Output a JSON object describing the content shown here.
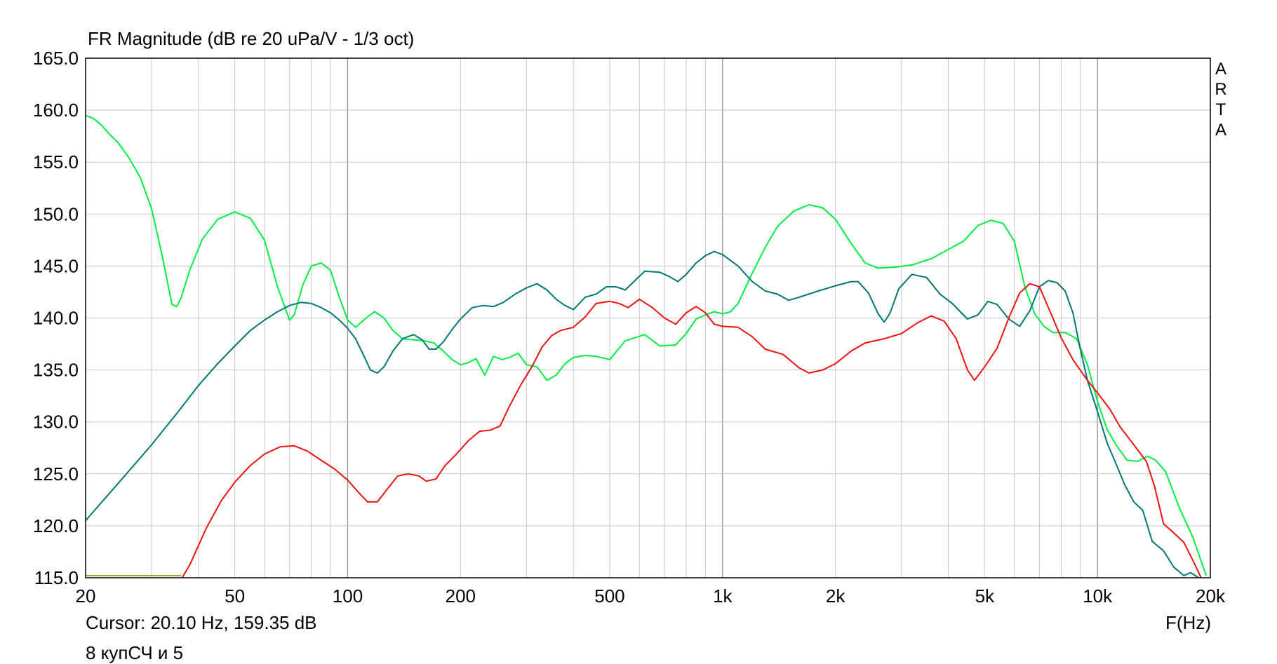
{
  "chart_data": {
    "type": "line",
    "title": "FR Magnitude (dB re 20 uPa/V - 1/3 oct)",
    "xlabel": "F(Hz)",
    "ylabel": "",
    "xscale": "log",
    "xlim": [
      20,
      20000
    ],
    "ylim": [
      115,
      165
    ],
    "grid": true,
    "x_ticks": [
      20,
      50,
      100,
      200,
      500,
      1000,
      2000,
      5000,
      10000,
      20000
    ],
    "x_tick_labels": [
      "20",
      "50",
      "100",
      "200",
      "500",
      "1k",
      "2k",
      "5k",
      "10k",
      "20k"
    ],
    "y_ticks": [
      115,
      120,
      125,
      130,
      135,
      140,
      145,
      150,
      155,
      160,
      165
    ],
    "y_tick_labels": [
      "115.0",
      "120.0",
      "125.0",
      "130.0",
      "135.0",
      "140.0",
      "145.0",
      "150.0",
      "155.0",
      "160.0",
      "165.0"
    ],
    "series": [
      {
        "color": "#00ee44",
        "points": [
          [
            20,
            159.5
          ],
          [
            21,
            159.2
          ],
          [
            22,
            158.6
          ],
          [
            23,
            157.8
          ],
          [
            24.5,
            156.8
          ],
          [
            26,
            155.5
          ],
          [
            28,
            153.5
          ],
          [
            30,
            150.5
          ],
          [
            32,
            146.0
          ],
          [
            34,
            141.3
          ],
          [
            35,
            141.1
          ],
          [
            36,
            142.0
          ],
          [
            38,
            144.7
          ],
          [
            41,
            147.6
          ],
          [
            45,
            149.5
          ],
          [
            50,
            150.2
          ],
          [
            55,
            149.6
          ],
          [
            60,
            147.5
          ],
          [
            65,
            143.0
          ],
          [
            70,
            139.8
          ],
          [
            72,
            140.3
          ],
          [
            76,
            143.2
          ],
          [
            80,
            145.0
          ],
          [
            85,
            145.3
          ],
          [
            90,
            144.6
          ],
          [
            95,
            142.0
          ],
          [
            100,
            139.8
          ],
          [
            105,
            139.1
          ],
          [
            112,
            140.0
          ],
          [
            118,
            140.6
          ],
          [
            125,
            140.0
          ],
          [
            132,
            138.8
          ],
          [
            140,
            138.0
          ],
          [
            150,
            137.9
          ],
          [
            160,
            137.8
          ],
          [
            170,
            137.6
          ],
          [
            180,
            136.8
          ],
          [
            190,
            136.0
          ],
          [
            200,
            135.5
          ],
          [
            210,
            135.7
          ],
          [
            220,
            136.1
          ],
          [
            232,
            134.5
          ],
          [
            245,
            136.3
          ],
          [
            258,
            136.0
          ],
          [
            270,
            136.2
          ],
          [
            285,
            136.6
          ],
          [
            300,
            135.5
          ],
          [
            320,
            135.3
          ],
          [
            340,
            134.0
          ],
          [
            360,
            134.5
          ],
          [
            380,
            135.6
          ],
          [
            400,
            136.2
          ],
          [
            430,
            136.4
          ],
          [
            460,
            136.3
          ],
          [
            500,
            136.0
          ],
          [
            550,
            137.8
          ],
          [
            620,
            138.4
          ],
          [
            680,
            137.3
          ],
          [
            750,
            137.4
          ],
          [
            800,
            138.5
          ],
          [
            850,
            139.9
          ],
          [
            900,
            140.3
          ],
          [
            950,
            140.6
          ],
          [
            1000,
            140.4
          ],
          [
            1050,
            140.6
          ],
          [
            1100,
            141.4
          ],
          [
            1200,
            144.3
          ],
          [
            1300,
            146.8
          ],
          [
            1400,
            148.8
          ],
          [
            1550,
            150.3
          ],
          [
            1700,
            150.9
          ],
          [
            1850,
            150.6
          ],
          [
            2000,
            149.5
          ],
          [
            2200,
            147.2
          ],
          [
            2400,
            145.3
          ],
          [
            2600,
            144.8
          ],
          [
            2900,
            144.9
          ],
          [
            3200,
            145.1
          ],
          [
            3600,
            145.7
          ],
          [
            4000,
            146.6
          ],
          [
            4400,
            147.4
          ],
          [
            4800,
            148.9
          ],
          [
            5200,
            149.4
          ],
          [
            5600,
            149.1
          ],
          [
            6000,
            147.4
          ],
          [
            6400,
            143.0
          ],
          [
            6800,
            140.4
          ],
          [
            7200,
            139.2
          ],
          [
            7600,
            138.6
          ],
          [
            8200,
            138.6
          ],
          [
            8800,
            138.0
          ],
          [
            9400,
            135.5
          ],
          [
            10000,
            132.0
          ],
          [
            10600,
            129.3
          ],
          [
            11200,
            127.8
          ],
          [
            12000,
            126.3
          ],
          [
            12800,
            126.2
          ],
          [
            13600,
            126.7
          ],
          [
            14300,
            126.3
          ],
          [
            15200,
            125.2
          ],
          [
            16500,
            121.8
          ],
          [
            18000,
            118.8
          ],
          [
            19500,
            115.2
          ]
        ]
      },
      {
        "color": "#007777",
        "points": [
          [
            20,
            120.5
          ],
          [
            25,
            124.5
          ],
          [
            30,
            127.8
          ],
          [
            35,
            130.8
          ],
          [
            40,
            133.5
          ],
          [
            45,
            135.6
          ],
          [
            50,
            137.3
          ],
          [
            55,
            138.8
          ],
          [
            60,
            139.8
          ],
          [
            65,
            140.6
          ],
          [
            70,
            141.2
          ],
          [
            75,
            141.5
          ],
          [
            80,
            141.4
          ],
          [
            85,
            141.0
          ],
          [
            90,
            140.5
          ],
          [
            95,
            139.8
          ],
          [
            100,
            139.0
          ],
          [
            105,
            138.0
          ],
          [
            110,
            136.5
          ],
          [
            115,
            135.0
          ],
          [
            120,
            134.7
          ],
          [
            125,
            135.3
          ],
          [
            132,
            136.8
          ],
          [
            140,
            138.0
          ],
          [
            150,
            138.4
          ],
          [
            158,
            137.9
          ],
          [
            165,
            137.0
          ],
          [
            172,
            137.0
          ],
          [
            180,
            137.7
          ],
          [
            190,
            138.9
          ],
          [
            200,
            139.9
          ],
          [
            215,
            141.0
          ],
          [
            230,
            141.2
          ],
          [
            245,
            141.1
          ],
          [
            260,
            141.5
          ],
          [
            280,
            142.3
          ],
          [
            300,
            142.9
          ],
          [
            320,
            143.3
          ],
          [
            340,
            142.7
          ],
          [
            360,
            141.8
          ],
          [
            380,
            141.2
          ],
          [
            400,
            140.8
          ],
          [
            430,
            142.0
          ],
          [
            460,
            142.3
          ],
          [
            490,
            143.0
          ],
          [
            520,
            143.0
          ],
          [
            550,
            142.7
          ],
          [
            580,
            143.5
          ],
          [
            620,
            144.5
          ],
          [
            680,
            144.4
          ],
          [
            720,
            144.0
          ],
          [
            760,
            143.5
          ],
          [
            800,
            144.2
          ],
          [
            850,
            145.3
          ],
          [
            900,
            146.0
          ],
          [
            950,
            146.4
          ],
          [
            1000,
            146.1
          ],
          [
            1100,
            145.0
          ],
          [
            1200,
            143.5
          ],
          [
            1300,
            142.6
          ],
          [
            1400,
            142.3
          ],
          [
            1500,
            141.7
          ],
          [
            1600,
            142.0
          ],
          [
            1800,
            142.6
          ],
          [
            2000,
            143.1
          ],
          [
            2200,
            143.5
          ],
          [
            2300,
            143.5
          ],
          [
            2450,
            142.4
          ],
          [
            2600,
            140.4
          ],
          [
            2700,
            139.6
          ],
          [
            2800,
            140.5
          ],
          [
            2950,
            142.8
          ],
          [
            3200,
            144.2
          ],
          [
            3500,
            143.9
          ],
          [
            3800,
            142.3
          ],
          [
            4100,
            141.4
          ],
          [
            4500,
            139.9
          ],
          [
            4800,
            140.3
          ],
          [
            5100,
            141.6
          ],
          [
            5400,
            141.3
          ],
          [
            5800,
            139.9
          ],
          [
            6200,
            139.2
          ],
          [
            6600,
            140.7
          ],
          [
            7000,
            143.0
          ],
          [
            7400,
            143.6
          ],
          [
            7800,
            143.4
          ],
          [
            8200,
            142.6
          ],
          [
            8600,
            140.5
          ],
          [
            9000,
            137.0
          ],
          [
            9400,
            134.0
          ],
          [
            10000,
            131.0
          ],
          [
            10600,
            128.0
          ],
          [
            11200,
            126.0
          ],
          [
            11800,
            124.0
          ],
          [
            12500,
            122.3
          ],
          [
            13200,
            121.5
          ],
          [
            14000,
            118.5
          ],
          [
            15000,
            117.6
          ],
          [
            16000,
            116.0
          ],
          [
            17000,
            115.2
          ],
          [
            17700,
            115.5
          ],
          [
            18600,
            115.0
          ]
        ]
      },
      {
        "color": "#ee1111",
        "points": [
          [
            36.2,
            115.0
          ],
          [
            38,
            116.3
          ],
          [
            42,
            119.8
          ],
          [
            46,
            122.4
          ],
          [
            50,
            124.2
          ],
          [
            55,
            125.8
          ],
          [
            60,
            126.9
          ],
          [
            66,
            127.6
          ],
          [
            72,
            127.7
          ],
          [
            78,
            127.2
          ],
          [
            85,
            126.3
          ],
          [
            92,
            125.5
          ],
          [
            100,
            124.4
          ],
          [
            107,
            123.2
          ],
          [
            113,
            122.3
          ],
          [
            120,
            122.3
          ],
          [
            128,
            123.6
          ],
          [
            136,
            124.8
          ],
          [
            145,
            125.0
          ],
          [
            155,
            124.8
          ],
          [
            162,
            124.3
          ],
          [
            172,
            124.5
          ],
          [
            182,
            125.8
          ],
          [
            195,
            126.9
          ],
          [
            210,
            128.2
          ],
          [
            225,
            129.1
          ],
          [
            240,
            129.2
          ],
          [
            255,
            129.6
          ],
          [
            270,
            131.5
          ],
          [
            290,
            133.6
          ],
          [
            310,
            135.3
          ],
          [
            330,
            137.2
          ],
          [
            350,
            138.3
          ],
          [
            370,
            138.8
          ],
          [
            400,
            139.1
          ],
          [
            430,
            140.1
          ],
          [
            460,
            141.4
          ],
          [
            500,
            141.6
          ],
          [
            530,
            141.4
          ],
          [
            560,
            141.0
          ],
          [
            600,
            141.8
          ],
          [
            650,
            141.0
          ],
          [
            700,
            140.0
          ],
          [
            750,
            139.4
          ],
          [
            800,
            140.5
          ],
          [
            850,
            141.1
          ],
          [
            900,
            140.5
          ],
          [
            950,
            139.4
          ],
          [
            1000,
            139.2
          ],
          [
            1100,
            139.1
          ],
          [
            1200,
            138.2
          ],
          [
            1300,
            137.0
          ],
          [
            1450,
            136.5
          ],
          [
            1600,
            135.2
          ],
          [
            1700,
            134.7
          ],
          [
            1850,
            135.0
          ],
          [
            2000,
            135.6
          ],
          [
            2200,
            136.8
          ],
          [
            2400,
            137.6
          ],
          [
            2700,
            138.0
          ],
          [
            3000,
            138.5
          ],
          [
            3300,
            139.5
          ],
          [
            3600,
            140.2
          ],
          [
            3900,
            139.7
          ],
          [
            4200,
            138.0
          ],
          [
            4500,
            135.0
          ],
          [
            4700,
            134.0
          ],
          [
            5000,
            135.3
          ],
          [
            5400,
            137.1
          ],
          [
            5800,
            140.0
          ],
          [
            6200,
            142.4
          ],
          [
            6600,
            143.3
          ],
          [
            7000,
            143.0
          ],
          [
            7500,
            140.5
          ],
          [
            8000,
            138.1
          ],
          [
            8600,
            136.0
          ],
          [
            9400,
            134.0
          ],
          [
            10000,
            132.8
          ],
          [
            10800,
            131.2
          ],
          [
            11500,
            129.5
          ],
          [
            12500,
            127.8
          ],
          [
            13500,
            126.2
          ],
          [
            14200,
            123.8
          ],
          [
            15000,
            120.2
          ],
          [
            16000,
            119.3
          ],
          [
            17000,
            118.4
          ],
          [
            18000,
            116.6
          ],
          [
            18900,
            115.0
          ]
        ]
      },
      {
        "color": "#a8a822",
        "points": [
          [
            20,
            115.2
          ],
          [
            36,
            115.2
          ]
        ]
      }
    ]
  },
  "labels": {
    "title": "FR Magnitude (dB re 20 uPa/V - 1/3 oct)",
    "cursor": "Cursor: 20.10 Hz, 159.35 dB",
    "description": "8 купСЧ и 5",
    "x_unit": "F(Hz)",
    "brand": [
      "A",
      "R",
      "T",
      "A"
    ]
  },
  "colors": {
    "background": "#ffffff",
    "frame": "#000000",
    "grid_major": "#909090",
    "grid_minor": "#c8c8c8"
  }
}
